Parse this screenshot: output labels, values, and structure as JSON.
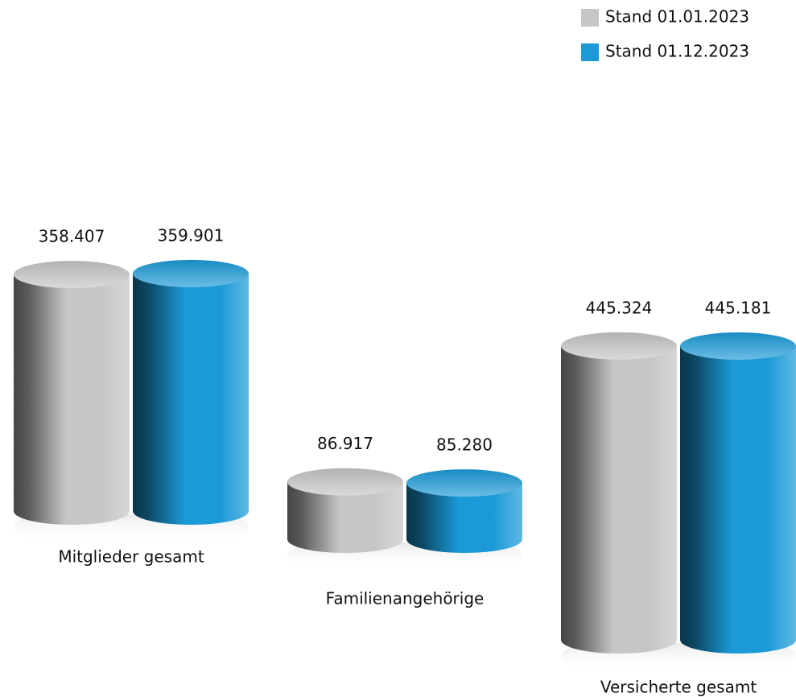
{
  "chart_data": {
    "type": "bar",
    "categories": [
      "Mitglieder gesamt",
      "Familienangehörige",
      "Versicherte gesamt"
    ],
    "series": [
      {
        "name": "Stand 01.01.2023",
        "color": "#c6c6c6",
        "values": [
          358407,
          86917,
          445324
        ],
        "value_labels": [
          "358.407",
          "86.917",
          "445.324"
        ]
      },
      {
        "name": "Stand 01.12.2023",
        "color": "#1b9ad7",
        "values": [
          359901,
          85280,
          445181
        ],
        "value_labels": [
          "359.901",
          "85.280",
          "445.181"
        ]
      }
    ],
    "legend": "upper right"
  }
}
